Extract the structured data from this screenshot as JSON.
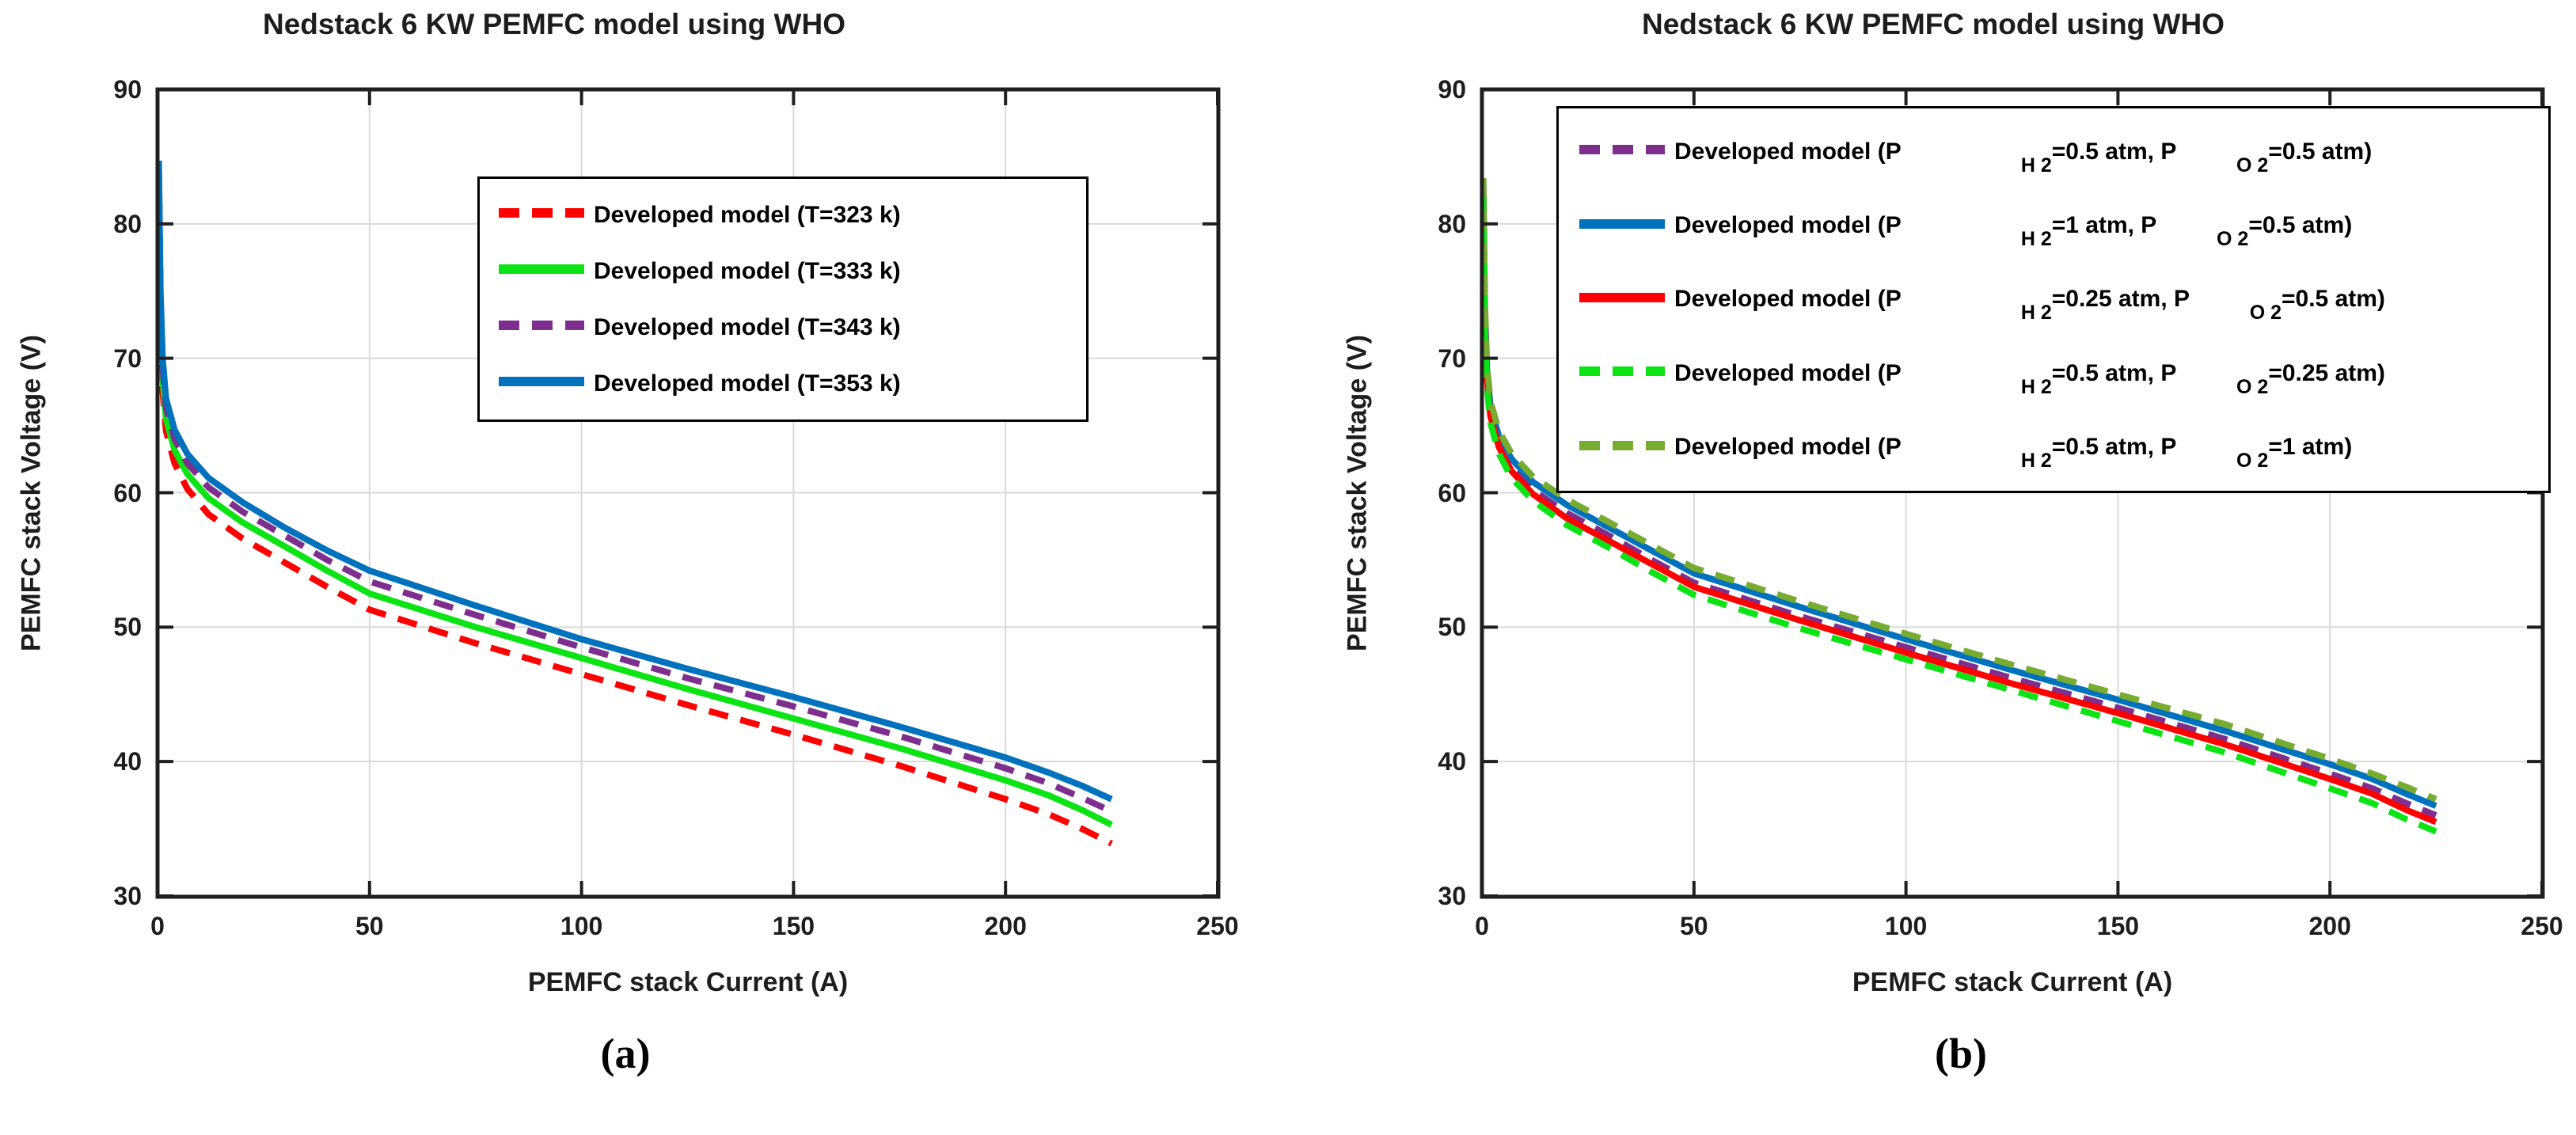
{
  "chart_data": [
    {
      "type": "line",
      "panel": "a",
      "title": "Nedstack 6 KW PEMFC model using WHO",
      "xlabel": "PEMFC stack Current (A)",
      "ylabel": "PEMFC stack Voltage (V)",
      "caption": "(a)",
      "xlim": [
        0,
        250
      ],
      "ylim": [
        30,
        90
      ],
      "x_ticks": [
        0,
        50,
        100,
        150,
        200,
        250
      ],
      "y_ticks": [
        30,
        40,
        50,
        60,
        70,
        80,
        90
      ],
      "grid": true,
      "legend_position": "upper right inside",
      "series": [
        {
          "name": "Developed model (T=323 k)",
          "label_parts": [
            {
              "t": "Developed model (T=323 k)"
            }
          ],
          "color": "#FF0000",
          "dash": true,
          "points": [
            [
              0.3,
              82.4
            ],
            [
              0.7,
              72.6
            ],
            [
              1.2,
              67.6
            ],
            [
              2,
              64.6
            ],
            [
              4,
              62.2
            ],
            [
              7,
              60.3
            ],
            [
              12,
              58.4
            ],
            [
              20,
              56.6
            ],
            [
              30,
              54.8
            ],
            [
              40,
              53.0
            ],
            [
              50,
              51.3
            ],
            [
              75,
              48.8
            ],
            [
              100,
              46.5
            ],
            [
              125,
              44.2
            ],
            [
              150,
              42.0
            ],
            [
              175,
              39.7
            ],
            [
              200,
              37.2
            ],
            [
              210,
              36.1
            ],
            [
              218,
              35.0
            ],
            [
              225,
              33.9
            ]
          ]
        },
        {
          "name": "Developed model (T=333 k)",
          "label_parts": [
            {
              "t": "Developed model (T=333 k)"
            }
          ],
          "color": "#0CE314",
          "dash": false,
          "points": [
            [
              0.3,
              83.2
            ],
            [
              0.7,
              73.5
            ],
            [
              1.2,
              68.5
            ],
            [
              2,
              65.5
            ],
            [
              4,
              63.2
            ],
            [
              7,
              61.4
            ],
            [
              12,
              59.6
            ],
            [
              20,
              57.8
            ],
            [
              30,
              56.0
            ],
            [
              40,
              54.2
            ],
            [
              50,
              52.5
            ],
            [
              75,
              50.0
            ],
            [
              100,
              47.7
            ],
            [
              125,
              45.4
            ],
            [
              150,
              43.2
            ],
            [
              175,
              41.0
            ],
            [
              200,
              38.6
            ],
            [
              210,
              37.5
            ],
            [
              218,
              36.4
            ],
            [
              225,
              35.3
            ]
          ]
        },
        {
          "name": "Developed model (T=343 k)",
          "label_parts": [
            {
              "t": "Developed model (T=343 k)"
            }
          ],
          "color": "#7E2F8E",
          "dash": true,
          "points": [
            [
              0.3,
              84.0
            ],
            [
              0.7,
              74.3
            ],
            [
              1.2,
              69.3
            ],
            [
              2,
              66.3
            ],
            [
              4,
              64.0
            ],
            [
              7,
              62.2
            ],
            [
              12,
              60.4
            ],
            [
              20,
              58.6
            ],
            [
              30,
              56.8
            ],
            [
              40,
              55.0
            ],
            [
              50,
              53.4
            ],
            [
              75,
              50.9
            ],
            [
              100,
              48.5
            ],
            [
              125,
              46.2
            ],
            [
              150,
              44.1
            ],
            [
              175,
              41.9
            ],
            [
              200,
              39.5
            ],
            [
              210,
              38.4
            ],
            [
              218,
              37.3
            ],
            [
              225,
              36.3
            ]
          ]
        },
        {
          "name": "Developed model (T=353 k)",
          "label_parts": [
            {
              "t": "Developed model (T=353 k)"
            }
          ],
          "color": "#0072BD",
          "dash": false,
          "points": [
            [
              0.3,
              84.7
            ],
            [
              0.7,
              75.0
            ],
            [
              1.2,
              70.0
            ],
            [
              2,
              67.0
            ],
            [
              4,
              64.7
            ],
            [
              7,
              62.9
            ],
            [
              12,
              61.1
            ],
            [
              20,
              59.3
            ],
            [
              30,
              57.4
            ],
            [
              40,
              55.7
            ],
            [
              50,
              54.2
            ],
            [
              75,
              51.6
            ],
            [
              100,
              49.1
            ],
            [
              125,
              46.9
            ],
            [
              150,
              44.8
            ],
            [
              175,
              42.6
            ],
            [
              200,
              40.3
            ],
            [
              210,
              39.2
            ],
            [
              218,
              38.2
            ],
            [
              225,
              37.2
            ]
          ]
        }
      ]
    },
    {
      "type": "line",
      "panel": "b",
      "title": "Nedstack 6 KW PEMFC model using WHO",
      "xlabel": "PEMFC stack Current (A)",
      "ylabel": "PEMFC stack Voltage (V)",
      "caption": "(b)",
      "xlim": [
        0,
        250
      ],
      "ylim": [
        30,
        90
      ],
      "x_ticks": [
        0,
        50,
        100,
        150,
        200,
        250
      ],
      "y_ticks": [
        30,
        40,
        50,
        60,
        70,
        80,
        90
      ],
      "grid": true,
      "legend_position": "upper right inside",
      "series": [
        {
          "name": "Developed model (P_H2=0.5 atm, P_O2=0.5 atm)",
          "label_parts": [
            {
              "t": "Developed model (P"
            },
            {
              "sub": "H 2",
              "w": "h"
            },
            {
              "t": "=0.5 atm, P"
            },
            {
              "sub": "O 2",
              "w": "o"
            },
            {
              "t": "=0.5 atm)"
            }
          ],
          "color": "#7E2F8E",
          "dash": true,
          "points": [
            [
              0.3,
              82.8
            ],
            [
              0.7,
              73.2
            ],
            [
              1.2,
              68.7
            ],
            [
              2,
              66.0
            ],
            [
              4,
              63.7
            ],
            [
              7,
              62.0
            ],
            [
              12,
              60.2
            ],
            [
              20,
              58.5
            ],
            [
              30,
              56.8
            ],
            [
              40,
              55.0
            ],
            [
              50,
              53.3
            ],
            [
              75,
              50.8
            ],
            [
              100,
              48.5
            ],
            [
              125,
              46.2
            ],
            [
              150,
              44.0
            ],
            [
              175,
              41.7
            ],
            [
              200,
              39.1
            ],
            [
              210,
              38.0
            ],
            [
              218,
              36.9
            ],
            [
              225,
              36.0
            ]
          ]
        },
        {
          "name": "Developed model (P_H2=1 atm, P_O2=0.5 atm)",
          "label_parts": [
            {
              "t": "Developed model (P"
            },
            {
              "sub": "H 2",
              "w": "h"
            },
            {
              "t": "=1 atm, P"
            },
            {
              "sub": "O 2",
              "w": "o"
            },
            {
              "t": "=0.5 atm)"
            }
          ],
          "color": "#0072BD",
          "dash": false,
          "points": [
            [
              0.3,
              83.1
            ],
            [
              0.7,
              73.6
            ],
            [
              1.2,
              69.1
            ],
            [
              2,
              66.4
            ],
            [
              4,
              64.2
            ],
            [
              7,
              62.5
            ],
            [
              12,
              60.8
            ],
            [
              20,
              59.1
            ],
            [
              30,
              57.4
            ],
            [
              40,
              55.7
            ],
            [
              50,
              54.0
            ],
            [
              75,
              51.5
            ],
            [
              100,
              49.1
            ],
            [
              125,
              46.8
            ],
            [
              150,
              44.6
            ],
            [
              175,
              42.3
            ],
            [
              200,
              39.8
            ],
            [
              210,
              38.7
            ],
            [
              218,
              37.6
            ],
            [
              225,
              36.7
            ]
          ]
        },
        {
          "name": "Developed model (P_H2=0.25 atm, P_O2=0.5 atm)",
          "label_parts": [
            {
              "t": "Developed model (P"
            },
            {
              "sub": "H 2",
              "w": "h"
            },
            {
              "t": "=0.25 atm, P"
            },
            {
              "sub": "O 2",
              "w": "o"
            },
            {
              "t": "=0.5 atm)"
            }
          ],
          "color": "#FF0000",
          "dash": false,
          "points": [
            [
              0.3,
              82.5
            ],
            [
              0.7,
              72.9
            ],
            [
              1.2,
              68.4
            ],
            [
              2,
              65.7
            ],
            [
              4,
              63.4
            ],
            [
              7,
              61.6
            ],
            [
              12,
              59.9
            ],
            [
              20,
              58.1
            ],
            [
              30,
              56.4
            ],
            [
              40,
              54.7
            ],
            [
              50,
              53.0
            ],
            [
              75,
              50.5
            ],
            [
              100,
              48.1
            ],
            [
              125,
              45.8
            ],
            [
              150,
              43.6
            ],
            [
              175,
              41.3
            ],
            [
              200,
              38.7
            ],
            [
              210,
              37.6
            ],
            [
              218,
              36.4
            ],
            [
              225,
              35.5
            ]
          ]
        },
        {
          "name": "Developed model (P_H2=0.5 atm, P_O2=0.25 atm)",
          "label_parts": [
            {
              "t": "Developed model (P"
            },
            {
              "sub": "H 2",
              "w": "h"
            },
            {
              "t": "=0.5 atm, P"
            },
            {
              "sub": "O 2",
              "w": "o"
            },
            {
              "t": "=0.25 atm)"
            }
          ],
          "color": "#0CE314",
          "dash": true,
          "points": [
            [
              0.3,
              82.1
            ],
            [
              0.7,
              72.4
            ],
            [
              1.2,
              67.9
            ],
            [
              2,
              65.2
            ],
            [
              4,
              62.9
            ],
            [
              7,
              61.1
            ],
            [
              12,
              59.4
            ],
            [
              20,
              57.6
            ],
            [
              30,
              55.9
            ],
            [
              40,
              54.1
            ],
            [
              50,
              52.4
            ],
            [
              75,
              49.9
            ],
            [
              100,
              47.6
            ],
            [
              125,
              45.3
            ],
            [
              150,
              43.0
            ],
            [
              175,
              40.7
            ],
            [
              200,
              38.0
            ],
            [
              210,
              36.9
            ],
            [
              218,
              35.7
            ],
            [
              225,
              34.8
            ]
          ]
        },
        {
          "name": "Developed model (P_H2=0.5 atm, P_O2=1 atm)",
          "label_parts": [
            {
              "t": "Developed model (P"
            },
            {
              "sub": "H 2",
              "w": "h"
            },
            {
              "t": "=0.5 atm, P"
            },
            {
              "sub": "O 2",
              "w": "o"
            },
            {
              "t": "=1 atm)"
            }
          ],
          "color": "#77AC30",
          "dash": true,
          "points": [
            [
              0.3,
              83.4
            ],
            [
              0.7,
              74.0
            ],
            [
              1.2,
              69.5
            ],
            [
              2,
              66.8
            ],
            [
              4,
              64.6
            ],
            [
              7,
              62.9
            ],
            [
              12,
              61.2
            ],
            [
              20,
              59.5
            ],
            [
              30,
              57.8
            ],
            [
              40,
              56.1
            ],
            [
              50,
              54.4
            ],
            [
              75,
              51.9
            ],
            [
              100,
              49.5
            ],
            [
              125,
              47.2
            ],
            [
              150,
              45.0
            ],
            [
              175,
              42.8
            ],
            [
              200,
              40.2
            ],
            [
              210,
              39.1
            ],
            [
              218,
              38.1
            ],
            [
              225,
              37.2
            ]
          ]
        }
      ]
    }
  ],
  "style_colors": {
    "grid": "#D9D9D9",
    "axis": "#1F1F1F",
    "text": "#1D1D1D"
  }
}
